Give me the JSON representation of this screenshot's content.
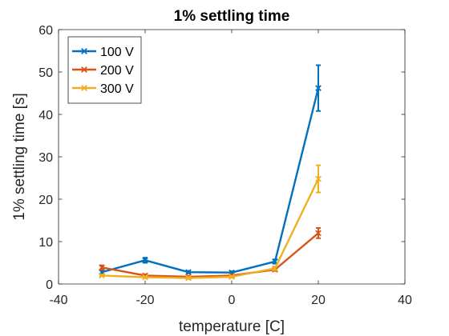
{
  "chart_data": {
    "type": "line",
    "title": "1% settling time",
    "xlabel": "temperature [C]",
    "ylabel": "1% settling time [s]",
    "xlim": [
      -40,
      40
    ],
    "ylim": [
      0,
      60
    ],
    "xticks": [
      -40,
      -20,
      0,
      20,
      40
    ],
    "yticks": [
      0,
      10,
      20,
      30,
      40,
      50,
      60
    ],
    "xtick_labels": [
      "-40",
      "-20",
      "0",
      "20",
      "40"
    ],
    "ytick_labels": [
      "0",
      "10",
      "20",
      "30",
      "40",
      "50",
      "60"
    ],
    "grid": false,
    "legend_position": "top-left",
    "x": [
      -30,
      -20,
      -10,
      0,
      10,
      20
    ],
    "series": [
      {
        "name": "100 V",
        "color": "#0072BD",
        "values": [
          2.8,
          5.6,
          2.8,
          2.7,
          5.3,
          46.2
        ],
        "errors": [
          0.4,
          0.6,
          0.3,
          0.3,
          0.5,
          5.4
        ]
      },
      {
        "name": "200 V",
        "color": "#D95319",
        "values": [
          3.9,
          2.0,
          1.7,
          2.0,
          3.4,
          12.0
        ],
        "errors": [
          0.5,
          0.3,
          0.2,
          0.2,
          0.3,
          1.2
        ]
      },
      {
        "name": "300 V",
        "color": "#EDB120",
        "values": [
          2.0,
          1.6,
          1.4,
          1.7,
          3.7,
          24.8
        ],
        "errors": [
          0.2,
          0.2,
          0.2,
          0.2,
          0.4,
          3.2
        ]
      }
    ]
  }
}
